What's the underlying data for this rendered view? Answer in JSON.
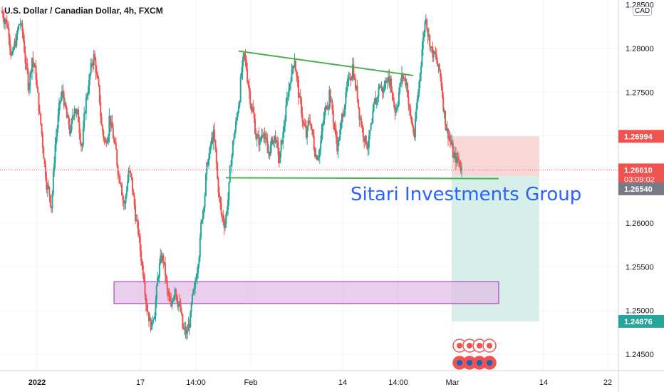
{
  "header": {
    "symbol_title": "U.S. Dollar / Canadian Dollar, 4h, FXCM",
    "currency": "CAD"
  },
  "watermark": "Sitari Investments Group",
  "colors": {
    "up": "#26a69a",
    "down": "#ef5350",
    "trendline": "#4caf50",
    "zone_fill": "#e1bee7",
    "zone_border": "#9c27b0",
    "stop_fill": "#f8d0d0",
    "target_fill": "#cfece4",
    "price_line": "#ef5350",
    "text": "#131722"
  },
  "chart_data": {
    "type": "candlestick",
    "ylim": [
      1.2435,
      1.2855
    ],
    "y_ticks": [
      "1.28000",
      "1.27500",
      "1.27000",
      "1.26500",
      "1.26000",
      "1.25500",
      "1.25000",
      "1.24500"
    ],
    "x_ticks": [
      "2022",
      "17",
      "14:00",
      "Feb",
      "14",
      "14:00",
      "Mar",
      "14",
      "22"
    ],
    "top_clipped_tick": "1.28500",
    "price_labels": {
      "stop": "1.26994",
      "current": "1.26610",
      "countdown": "03:09:02",
      "entry": "1.26540",
      "target": "1.24876"
    },
    "series_close_path": [
      1.2835,
      1.282,
      1.279,
      1.281,
      1.283,
      1.28,
      1.276,
      1.279,
      1.277,
      1.272,
      1.268,
      1.264,
      1.262,
      1.269,
      1.273,
      1.275,
      1.272,
      1.27,
      1.2735,
      1.272,
      1.269,
      1.274,
      1.277,
      1.279,
      1.276,
      1.271,
      1.269,
      1.272,
      1.27,
      1.267,
      1.265,
      1.262,
      1.266,
      1.264,
      1.26,
      1.257,
      1.254,
      1.25,
      1.248,
      1.251,
      1.255,
      1.256,
      1.252,
      1.25,
      1.253,
      1.251,
      1.248,
      1.247,
      1.249,
      1.252,
      1.256,
      1.261,
      1.265,
      1.268,
      1.27,
      1.265,
      1.261,
      1.26,
      1.264,
      1.269,
      1.272,
      1.276,
      1.279,
      1.276,
      1.273,
      1.27,
      1.269,
      1.271,
      1.268,
      1.269,
      1.27,
      1.267,
      1.27,
      1.274,
      1.277,
      1.279,
      1.275,
      1.272,
      1.27,
      1.272,
      1.269,
      1.268,
      1.27,
      1.273,
      1.275,
      1.272,
      1.269,
      1.271,
      1.274,
      1.276,
      1.278,
      1.275,
      1.272,
      1.27,
      1.269,
      1.271,
      1.274,
      1.276,
      1.275,
      1.277,
      1.276,
      1.273,
      1.275,
      1.277,
      1.276,
      1.272,
      1.27,
      1.275,
      1.28,
      1.284,
      1.281,
      1.279,
      1.278,
      1.276,
      1.272,
      1.27,
      1.268,
      1.267,
      1.2665,
      1.2661
    ],
    "trendlines": [
      {
        "from": [
          "Jan 25",
          1.2797
        ],
        "to": [
          "Feb 25",
          1.2769
        ]
      },
      {
        "from": [
          "Jan 25",
          1.2652
        ],
        "to": [
          "Mar 4",
          1.2651
        ]
      }
    ],
    "demand_zone": {
      "from_date": "Jan 12",
      "to_date": "Mar 4",
      "top": 1.2533,
      "bottom": 1.2508
    },
    "short_position": {
      "entry": 1.2654,
      "stop": 1.26994,
      "target": 1.24876
    },
    "current_price": 1.2661
  }
}
